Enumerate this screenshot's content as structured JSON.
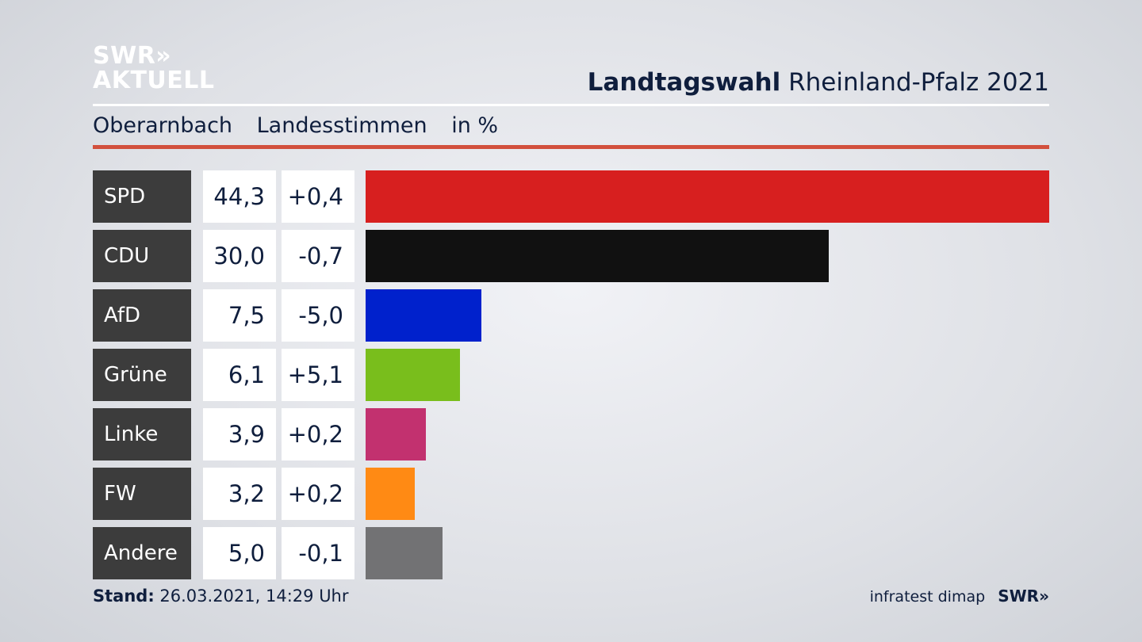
{
  "logo": {
    "line1": "SWR»",
    "line2": "AKTUELL"
  },
  "header": {
    "title_bold": "Landtagswahl",
    "title_rest": "Rheinland-Pfalz 2021",
    "location": "Oberarnbach",
    "vote_type": "Landesstimmen",
    "unit": "in %"
  },
  "chart_data": {
    "type": "bar",
    "orientation": "horizontal",
    "categories": [
      "SPD",
      "CDU",
      "AfD",
      "Grüne",
      "Linke",
      "FW",
      "Andere"
    ],
    "values": [
      44.3,
      30.0,
      7.5,
      6.1,
      3.9,
      3.2,
      5.0
    ],
    "value_labels": [
      "44,3",
      "30,0",
      "7,5",
      "6,1",
      "3,9",
      "3,2",
      "5,0"
    ],
    "changes": [
      "+0,4",
      "-0,7",
      "-5,0",
      "+5,1",
      "+0,2",
      "+0,2",
      "-0,1"
    ],
    "colors": [
      "#d71f1f",
      "#111111",
      "#0021cc",
      "#79be1c",
      "#c2316f",
      "#ff8a14",
      "#727274"
    ],
    "xlim": [
      0,
      44.3
    ]
  },
  "footer": {
    "stand_label": "Stand:",
    "stand_value": "26.03.2021, 14:29 Uhr",
    "source": "infratest dimap",
    "brand": "SWR»"
  }
}
